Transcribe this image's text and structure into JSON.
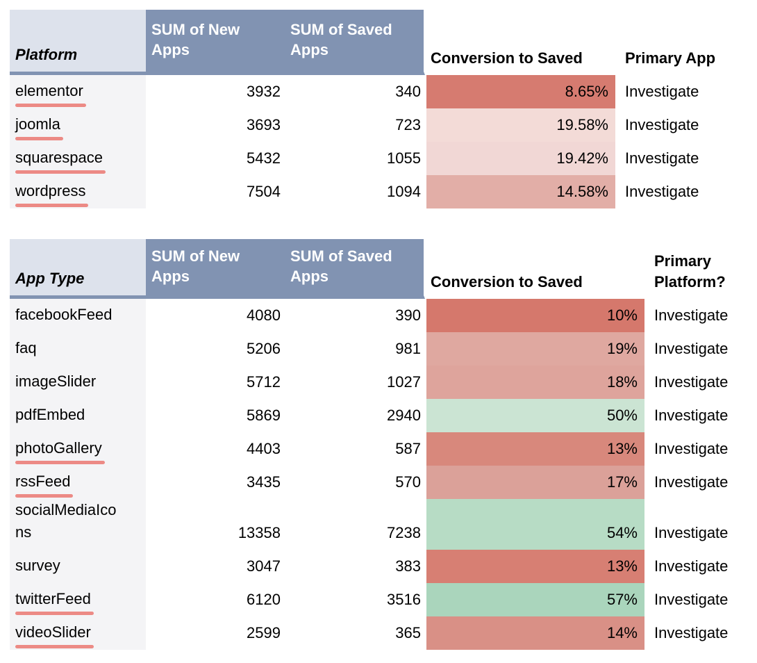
{
  "page": {
    "background": "#ffffff"
  },
  "styles": {
    "header_fill": "#8193b2",
    "header_label_fill": "#dde2ec",
    "name_column_fill": "#f4f4f6",
    "header_text_color": "#ffffff",
    "spell_underline_color": "#ec8a85"
  },
  "tables": [
    {
      "title_col": "Platform",
      "headers": {
        "new": "SUM of New Apps",
        "saved": "SUM of Saved Apps",
        "conversion": "Conversion to Saved",
        "action": "Primary App"
      },
      "rows": [
        {
          "name": "elementor",
          "misspelled": true,
          "new": "3932",
          "saved": "340",
          "conversion": "8.65%",
          "color": "#d67b70",
          "action": "Investigate"
        },
        {
          "name": "joomla",
          "misspelled": true,
          "new": "3693",
          "saved": "723",
          "conversion": "19.58%",
          "color": "#f3dbd7",
          "action": "Investigate"
        },
        {
          "name": "squarespace",
          "misspelled": true,
          "new": "5432",
          "saved": "1055",
          "conversion": "19.42%",
          "color": "#f1d7d5",
          "action": "Investigate"
        },
        {
          "name": "wordpress",
          "misspelled": true,
          "new": "7504",
          "saved": "1094",
          "conversion": "14.58%",
          "color": "#e2aea7",
          "action": "Investigate"
        }
      ]
    },
    {
      "title_col": "App Type",
      "headers": {
        "new": "SUM of New Apps",
        "saved": "SUM of Saved Apps",
        "conversion": "Conversion to Saved",
        "action": "Primary Platform?"
      },
      "rows": [
        {
          "name": "facebookFeed",
          "misspelled": false,
          "new": "4080",
          "saved": "390",
          "conversion": "10%",
          "color": "#d5786c",
          "action": "Investigate"
        },
        {
          "name": "faq",
          "misspelled": false,
          "new": "5206",
          "saved": "981",
          "conversion": "19%",
          "color": "#dfa8a0",
          "action": "Investigate"
        },
        {
          "name": "imageSlider",
          "misspelled": false,
          "new": "5712",
          "saved": "1027",
          "conversion": "18%",
          "color": "#dea49c",
          "action": "Investigate"
        },
        {
          "name": "pdfEmbed",
          "misspelled": false,
          "new": "5869",
          "saved": "2940",
          "conversion": "50%",
          "color": "#cbe4d3",
          "action": "Investigate"
        },
        {
          "name": "photoGallery",
          "misspelled": true,
          "new": "4403",
          "saved": "587",
          "conversion": "13%",
          "color": "#d8887c",
          "action": "Investigate"
        },
        {
          "name": "rssFeed",
          "misspelled": true,
          "new": "3435",
          "saved": "570",
          "conversion": "17%",
          "color": "#dba199",
          "action": "Investigate"
        },
        {
          "name": "socialMediaIcons",
          "misspelled": false,
          "new": "13358",
          "saved": "7238",
          "conversion": "54%",
          "color": "#b7dcc5",
          "action": "Investigate"
        },
        {
          "name": "survey",
          "misspelled": false,
          "new": "3047",
          "saved": "383",
          "conversion": "13%",
          "color": "#d77f73",
          "action": "Investigate"
        },
        {
          "name": "twitterFeed",
          "misspelled": true,
          "new": "6120",
          "saved": "3516",
          "conversion": "57%",
          "color": "#aad5bc",
          "action": "Investigate"
        },
        {
          "name": "videoSlider",
          "misspelled": true,
          "new": "2599",
          "saved": "365",
          "conversion": "14%",
          "color": "#d99086",
          "action": "Investigate"
        }
      ]
    }
  ]
}
